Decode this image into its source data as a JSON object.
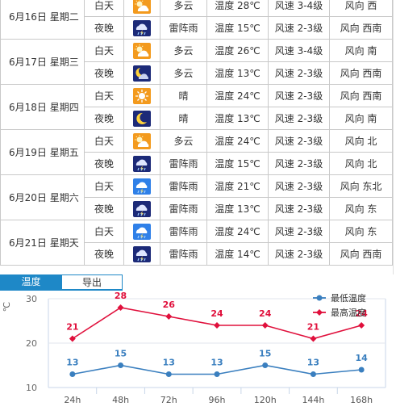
{
  "days": [
    {
      "date": "6月16日 星期二",
      "day": {
        "label": "白天",
        "icon": "partly-cloudy-icon",
        "condition": "多云",
        "temp": "温度 28℃",
        "wind": "风速 3-4级",
        "dir": "风向 西"
      },
      "night": {
        "label": "夜晚",
        "icon": "thunderstorm-night-icon",
        "condition": "雷阵雨",
        "temp": "温度 15℃",
        "wind": "风速 2-3级",
        "dir": "风向 西南"
      }
    },
    {
      "date": "6月17日 星期三",
      "day": {
        "label": "白天",
        "icon": "partly-cloudy-icon",
        "condition": "多云",
        "temp": "温度 26℃",
        "wind": "风速 3-4级",
        "dir": "风向 南"
      },
      "night": {
        "label": "夜晚",
        "icon": "cloudy-night-icon",
        "condition": "多云",
        "temp": "温度 13℃",
        "wind": "风速 2-3级",
        "dir": "风向 西南"
      }
    },
    {
      "date": "6月18日 星期四",
      "day": {
        "label": "白天",
        "icon": "sunny-icon",
        "condition": "晴",
        "temp": "温度 24℃",
        "wind": "风速 2-3级",
        "dir": "风向 西南"
      },
      "night": {
        "label": "夜晚",
        "icon": "clear-night-icon",
        "condition": "晴",
        "temp": "温度 13℃",
        "wind": "风速 2-3级",
        "dir": "风向 南"
      }
    },
    {
      "date": "6月19日 星期五",
      "day": {
        "label": "白天",
        "icon": "partly-cloudy-icon",
        "condition": "多云",
        "temp": "温度 24℃",
        "wind": "风速 2-3级",
        "dir": "风向 北"
      },
      "night": {
        "label": "夜晚",
        "icon": "thunderstorm-night-icon",
        "condition": "雷阵雨",
        "temp": "温度 15℃",
        "wind": "风速 2-3级",
        "dir": "风向 北"
      }
    },
    {
      "date": "6月20日 星期六",
      "day": {
        "label": "白天",
        "icon": "thunderstorm-day-icon",
        "condition": "雷阵雨",
        "temp": "温度 21℃",
        "wind": "风速 2-3级",
        "dir": "风向 东北"
      },
      "night": {
        "label": "夜晚",
        "icon": "thunderstorm-night-icon",
        "condition": "雷阵雨",
        "temp": "温度 13℃",
        "wind": "风速 2-3级",
        "dir": "风向 东"
      }
    },
    {
      "date": "6月21日 星期天",
      "day": {
        "label": "白天",
        "icon": "thunderstorm-day-icon",
        "condition": "雷阵雨",
        "temp": "温度 24℃",
        "wind": "风速 2-3级",
        "dir": "风向 东"
      },
      "night": {
        "label": "夜晚",
        "icon": "thunderstorm-night-icon",
        "condition": "雷阵雨",
        "temp": "温度 14℃",
        "wind": "风速 2-3级",
        "dir": "风向 西南"
      }
    }
  ],
  "tabs": {
    "temperature": "温度",
    "export": "导出"
  },
  "colors": {
    "low": "#3a7fbf",
    "high": "#e0103c",
    "tab": "#1e88c7"
  },
  "chart_data": {
    "type": "line",
    "ylabel": "℃",
    "ylim": [
      10,
      30
    ],
    "yticks": [
      10,
      20,
      30
    ],
    "x": [
      "24h",
      "48h",
      "72h",
      "96h",
      "120h",
      "144h",
      "168h"
    ],
    "series": [
      {
        "name": "最低温度",
        "color": "#3a7fbf",
        "values": [
          13,
          15,
          13,
          13,
          15,
          13,
          14
        ]
      },
      {
        "name": "最高温度",
        "color": "#e0103c",
        "values": [
          21,
          28,
          26,
          24,
          24,
          21,
          24
        ]
      }
    ],
    "legend": "top-right"
  }
}
